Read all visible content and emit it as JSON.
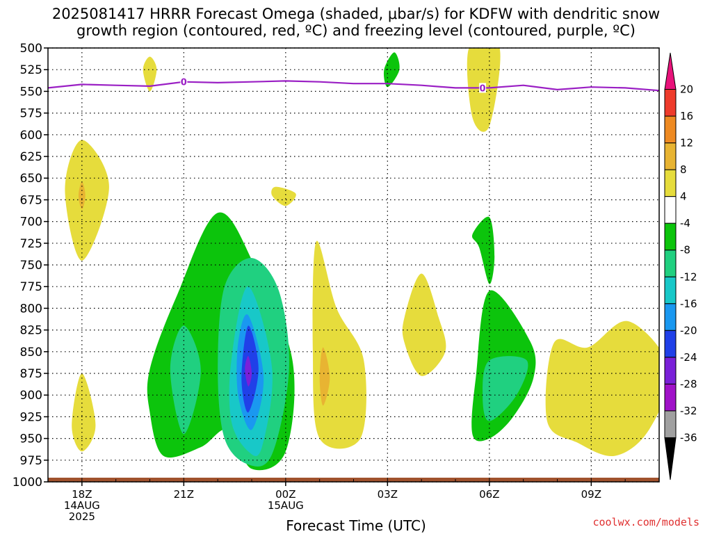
{
  "title_line1": "2025081417 HRRR Forecast Omega (shaded, μbar/s) for KDFW with dendritic snow",
  "title_line2": "growth region (contoured, red, ºC) and freezing level (contoured, purple, ºC)",
  "xaxis_title": "Forecast Time (UTC)",
  "credit": "coolwx.com/models",
  "chart_data": {
    "type": "heatmap",
    "title": "2025081417 HRRR Forecast Omega (shaded, μbar/s) for KDFW with dendritic snow growth region (contoured, red, ºC) and freezing level (contoured, purple, ºC)",
    "xlabel": "Forecast Time (UTC)",
    "ylabel": "",
    "y_ticks": [
      "500",
      "525",
      "550",
      "575",
      "600",
      "625",
      "650",
      "675",
      "700",
      "725",
      "750",
      "775",
      "800",
      "825",
      "850",
      "875",
      "900",
      "925",
      "950",
      "975",
      "1000"
    ],
    "y_range": [
      500,
      1000
    ],
    "y_inverted": true,
    "x_ticks": [
      {
        "hour": 18,
        "lines": [
          "18Z",
          "14AUG",
          "2025"
        ]
      },
      {
        "hour": 21,
        "lines": [
          "21Z"
        ]
      },
      {
        "hour": 24,
        "lines": [
          "00Z",
          "15AUG"
        ]
      },
      {
        "hour": 27,
        "lines": [
          "03Z"
        ]
      },
      {
        "hour": 30,
        "lines": [
          "06Z"
        ]
      },
      {
        "hour": 33,
        "lines": [
          "09Z"
        ]
      }
    ],
    "x_range": [
      17,
      35
    ],
    "grid": true,
    "colorbar": {
      "levels": [
        "20",
        "16",
        "12",
        "8",
        "4",
        "-4",
        "-8",
        "-12",
        "-16",
        "-20",
        "-24",
        "-28",
        "-32",
        "-36"
      ],
      "colors": [
        "#e8127a",
        "#ee3b2b",
        "#ee8a22",
        "#e8b432",
        "#e6dc3c",
        "#ffffff",
        "#0cc40c",
        "#20d080",
        "#18c8c8",
        "#1a98f0",
        "#2040e8",
        "#7a20d8",
        "#a012c8",
        "#a0a0a0",
        "#000000"
      ]
    },
    "freezing_level": {
      "label": "0",
      "color": "#9a1fc4",
      "points": [
        [
          17,
          546
        ],
        [
          18,
          542
        ],
        [
          19,
          543
        ],
        [
          20,
          544
        ],
        [
          21,
          539
        ],
        [
          22,
          540
        ],
        [
          23,
          539
        ],
        [
          24,
          538
        ],
        [
          25,
          539
        ],
        [
          26,
          541
        ],
        [
          27,
          541
        ],
        [
          28,
          543
        ],
        [
          29,
          546
        ],
        [
          30,
          546
        ],
        [
          31,
          543
        ],
        [
          32,
          548
        ],
        [
          33,
          545
        ],
        [
          34,
          546
        ],
        [
          35,
          549
        ]
      ]
    },
    "omega_regions": [
      {
        "value": 4,
        "color": "#e6dc3c",
        "points": [
          [
            18,
            606
          ],
          [
            18.8,
            660
          ],
          [
            18,
            745
          ],
          [
            17.5,
            663
          ]
        ]
      },
      {
        "value": 8,
        "color": "#e8b432",
        "points": [
          [
            18,
            654
          ],
          [
            18.1,
            670
          ],
          [
            18,
            686
          ],
          [
            17.9,
            670
          ]
        ]
      },
      {
        "value": 4,
        "color": "#e6dc3c",
        "points": [
          [
            18,
            875
          ],
          [
            18.4,
            935
          ],
          [
            18,
            965
          ],
          [
            17.7,
            935
          ]
        ]
      },
      {
        "value": 4,
        "color": "#e6dc3c",
        "points": [
          [
            20,
            510
          ],
          [
            20.2,
            525
          ],
          [
            20,
            550
          ],
          [
            19.8,
            525
          ]
        ]
      },
      {
        "value": -4,
        "color": "#0cc40c",
        "points": [
          [
            22,
            690
          ],
          [
            23.1,
            752
          ],
          [
            24.2,
            860
          ],
          [
            24,
            965
          ],
          [
            23,
            985
          ],
          [
            22.3,
            940
          ],
          [
            21.5,
            960
          ],
          [
            20.4,
            970
          ],
          [
            20,
            920
          ],
          [
            20,
            870
          ],
          [
            20.8,
            785
          ]
        ]
      },
      {
        "value": -8,
        "color": "#20d080",
        "points": [
          [
            23,
            742
          ],
          [
            23.8,
            780
          ],
          [
            24.1,
            870
          ],
          [
            23.6,
            968
          ],
          [
            22.9,
            980
          ],
          [
            22.2,
            950
          ],
          [
            22,
            870
          ],
          [
            22.2,
            775
          ]
        ]
      },
      {
        "value": -8,
        "color": "#20d080",
        "points": [
          [
            21,
            820
          ],
          [
            21.5,
            872
          ],
          [
            21,
            945
          ],
          [
            20.6,
            870
          ]
        ]
      },
      {
        "value": -12,
        "color": "#18c8c8",
        "points": [
          [
            22.9,
            775
          ],
          [
            23.6,
            870
          ],
          [
            23.3,
            960
          ],
          [
            22.9,
            965
          ],
          [
            22.4,
            930
          ],
          [
            22.4,
            860
          ]
        ]
      },
      {
        "value": -16,
        "color": "#1a98f0",
        "points": [
          [
            22.9,
            808
          ],
          [
            23.35,
            880
          ],
          [
            23,
            940
          ],
          [
            22.6,
            900
          ],
          [
            22.6,
            840
          ]
        ]
      },
      {
        "value": -20,
        "color": "#2040e8",
        "points": [
          [
            22.9,
            820
          ],
          [
            23.2,
            870
          ],
          [
            22.9,
            920
          ],
          [
            22.7,
            880
          ]
        ]
      },
      {
        "value": -24,
        "color": "#7a20d8",
        "points": [
          [
            22.9,
            855
          ],
          [
            23,
            875
          ],
          [
            22.9,
            890
          ],
          [
            22.8,
            870
          ]
        ]
      },
      {
        "value": 4,
        "color": "#e6dc3c",
        "points": [
          [
            24.9,
            723
          ],
          [
            25.5,
            800
          ],
          [
            26.3,
            860
          ],
          [
            26.2,
            950
          ],
          [
            25,
            950
          ],
          [
            24.8,
            850
          ]
        ]
      },
      {
        "value": 8,
        "color": "#e8b432",
        "points": [
          [
            25.1,
            845
          ],
          [
            25.3,
            880
          ],
          [
            25.1,
            912
          ],
          [
            25,
            880
          ]
        ]
      },
      {
        "value": 4,
        "color": "#e6dc3c",
        "points": [
          [
            23.7,
            660
          ],
          [
            24.3,
            668
          ],
          [
            24,
            682
          ],
          [
            23.6,
            670
          ]
        ]
      },
      {
        "value": -4,
        "color": "#0cc40c",
        "points": [
          [
            27.2,
            505
          ],
          [
            27.35,
            525
          ],
          [
            27,
            545
          ],
          [
            26.9,
            525
          ]
        ]
      },
      {
        "value": 4,
        "color": "#e6dc3c",
        "points": [
          [
            28,
            760
          ],
          [
            28.5,
            810
          ],
          [
            28.7,
            850
          ],
          [
            28,
            878
          ],
          [
            27.5,
            840
          ],
          [
            27.5,
            810
          ]
        ]
      },
      {
        "value": 4,
        "color": "#e6dc3c",
        "points": [
          [
            29.4,
            500
          ],
          [
            30.3,
            500
          ],
          [
            30,
            590
          ],
          [
            29.5,
            580
          ]
        ]
      },
      {
        "value": -4,
        "color": "#0cc40c",
        "points": [
          [
            30,
            695
          ],
          [
            30.15,
            740
          ],
          [
            30,
            772
          ],
          [
            29.7,
            730
          ],
          [
            29.5,
            715
          ]
        ]
      },
      {
        "value": -4,
        "color": "#0cc40c",
        "points": [
          [
            30,
            780
          ],
          [
            31.2,
            838
          ],
          [
            31.3,
            880
          ],
          [
            30.7,
            925
          ],
          [
            30,
            950
          ],
          [
            29.5,
            945
          ],
          [
            29.6,
            880
          ]
        ]
      },
      {
        "value": -8,
        "color": "#20d080",
        "points": [
          [
            30,
            860
          ],
          [
            31.1,
            860
          ],
          [
            30.8,
            900
          ],
          [
            30,
            930
          ],
          [
            29.8,
            900
          ]
        ]
      },
      {
        "value": 4,
        "color": "#e6dc3c",
        "points": [
          [
            31.9,
            840
          ],
          [
            32.9,
            845
          ],
          [
            34.1,
            815
          ],
          [
            35.3,
            870
          ],
          [
            34.7,
            940
          ],
          [
            33.7,
            970
          ],
          [
            32.6,
            955
          ],
          [
            31.7,
            930
          ]
        ]
      }
    ]
  }
}
